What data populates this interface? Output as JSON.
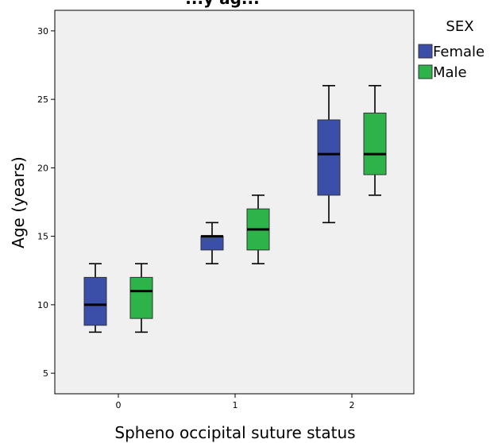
{
  "chart_data": {
    "type": "boxplot",
    "title": "...y ag...",
    "xlabel": "Spheno occipital suture status",
    "ylabel": "Age (years)",
    "ylim": [
      3.5,
      31.5
    ],
    "yticks": [
      5,
      10,
      15,
      20,
      25,
      30
    ],
    "categories": [
      "0",
      "1",
      "2"
    ],
    "legend": {
      "title": "SEX",
      "position": "right"
    },
    "grid": false,
    "series": [
      {
        "name": "Female",
        "color": "#3c4fa8",
        "boxes": [
          {
            "category": "0",
            "min": 8,
            "q1": 8.5,
            "median": 10,
            "q3": 12,
            "max": 13
          },
          {
            "category": "1",
            "min": 13,
            "q1": 14,
            "median": 15,
            "q3": 15,
            "max": 16
          },
          {
            "category": "2",
            "min": 16,
            "q1": 18,
            "median": 21,
            "q3": 23.5,
            "max": 26
          }
        ]
      },
      {
        "name": "Male",
        "color": "#2db34a",
        "boxes": [
          {
            "category": "0",
            "min": 8,
            "q1": 9,
            "median": 11,
            "q3": 12,
            "max": 13
          },
          {
            "category": "1",
            "min": 13,
            "q1": 14,
            "median": 15.5,
            "q3": 17,
            "max": 18
          },
          {
            "category": "2",
            "min": 18,
            "q1": 19.5,
            "median": 21,
            "q3": 24,
            "max": 26
          }
        ]
      }
    ]
  }
}
